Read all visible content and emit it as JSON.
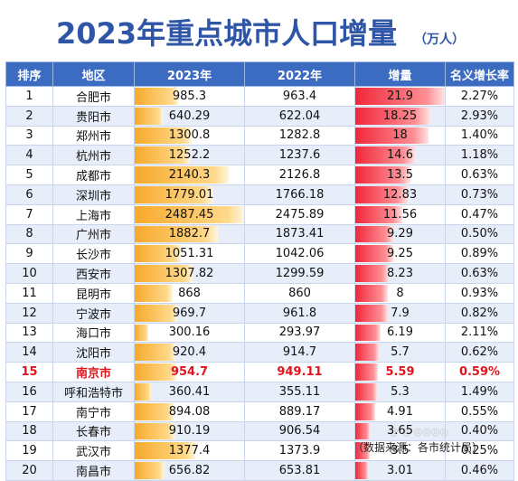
{
  "title": "2023年重点城市人口增量",
  "unit": "（万人）",
  "headers": [
    "排序",
    "地区",
    "2023年",
    "2022年",
    "增量",
    "名义增长率"
  ],
  "highlight_city": "南京市",
  "rows": [
    {
      "rank": "1",
      "city": "合肥市",
      "y2023": "985.3",
      "y2022": "963.4",
      "inc": "21.9",
      "rate": "2.27%"
    },
    {
      "rank": "2",
      "city": "贵阳市",
      "y2023": "640.29",
      "y2022": "622.04",
      "inc": "18.25",
      "rate": "2.93%"
    },
    {
      "rank": "3",
      "city": "郑州市",
      "y2023": "1300.8",
      "y2022": "1282.8",
      "inc": "18",
      "rate": "1.40%"
    },
    {
      "rank": "4",
      "city": "杭州市",
      "y2023": "1252.2",
      "y2022": "1237.6",
      "inc": "14.6",
      "rate": "1.18%"
    },
    {
      "rank": "5",
      "city": "成都市",
      "y2023": "2140.3",
      "y2022": "2126.8",
      "inc": "13.5",
      "rate": "0.63%"
    },
    {
      "rank": "6",
      "city": "深圳市",
      "y2023": "1779.01",
      "y2022": "1766.18",
      "inc": "12.83",
      "rate": "0.73%"
    },
    {
      "rank": "7",
      "city": "上海市",
      "y2023": "2487.45",
      "y2022": "2475.89",
      "inc": "11.56",
      "rate": "0.47%"
    },
    {
      "rank": "8",
      "city": "广州市",
      "y2023": "1882.7",
      "y2022": "1873.41",
      "inc": "9.29",
      "rate": "0.50%"
    },
    {
      "rank": "9",
      "city": "长沙市",
      "y2023": "1051.31",
      "y2022": "1042.06",
      "inc": "9.25",
      "rate": "0.89%"
    },
    {
      "rank": "10",
      "city": "西安市",
      "y2023": "1307.82",
      "y2022": "1299.59",
      "inc": "8.23",
      "rate": "0.63%"
    },
    {
      "rank": "11",
      "city": "昆明市",
      "y2023": "868",
      "y2022": "860",
      "inc": "8",
      "rate": "0.93%"
    },
    {
      "rank": "12",
      "city": "宁波市",
      "y2023": "969.7",
      "y2022": "961.8",
      "inc": "7.9",
      "rate": "0.82%"
    },
    {
      "rank": "13",
      "city": "海口市",
      "y2023": "300.16",
      "y2022": "293.97",
      "inc": "6.19",
      "rate": "2.11%"
    },
    {
      "rank": "14",
      "city": "沈阳市",
      "y2023": "920.4",
      "y2022": "914.7",
      "inc": "5.7",
      "rate": "0.62%"
    },
    {
      "rank": "15",
      "city": "南京市",
      "y2023": "954.7",
      "y2022": "949.11",
      "inc": "5.59",
      "rate": "0.59%"
    },
    {
      "rank": "16",
      "city": "呼和浩特市",
      "y2023": "360.41",
      "y2022": "355.11",
      "inc": "5.3",
      "rate": "1.49%"
    },
    {
      "rank": "17",
      "city": "南宁市",
      "y2023": "894.08",
      "y2022": "889.17",
      "inc": "4.91",
      "rate": "0.55%"
    },
    {
      "rank": "18",
      "city": "长春市",
      "y2023": "910.19",
      "y2022": "906.54",
      "inc": "3.65",
      "rate": "0.40%"
    },
    {
      "rank": "19",
      "city": "武汉市",
      "y2023": "1377.4",
      "y2022": "1373.9",
      "inc": "3.5",
      "rate": "0.25%"
    },
    {
      "rank": "20",
      "city": "南昌市",
      "y2023": "656.82",
      "y2022": "653.81",
      "inc": "3.01",
      "rate": "0.46%"
    }
  ],
  "source": "（数据来源：各市统计局）",
  "colors": {
    "title": "#2f56a6",
    "header": "#3b6cc1",
    "bar_2023": "#f7a92b",
    "bar_inc": "#f0273a",
    "highlight": "#e0141c"
  }
}
